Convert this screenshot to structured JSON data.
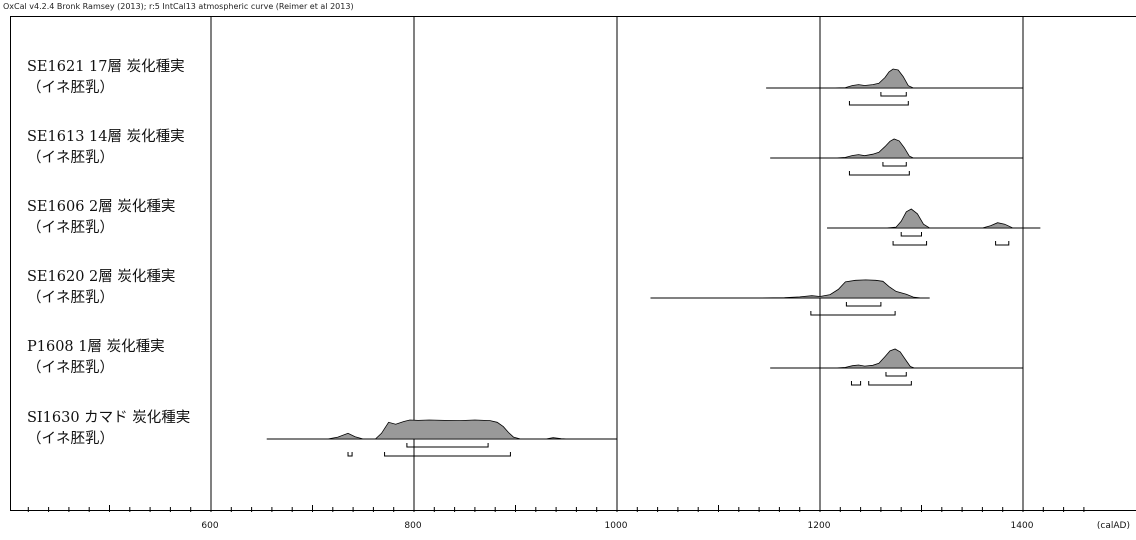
{
  "header": "OxCal v4.2.4 Bronk Ramsey (2013); r:5 IntCal13 atmospheric curve (Reimer et al 2013)",
  "chart_data": {
    "type": "area",
    "title": "",
    "xlabel": "(calAD)",
    "ylabel": "",
    "xlim": [
      400,
      1460
    ],
    "x_ticks": [
      600,
      800,
      1000,
      1200,
      1400
    ],
    "x_tick_labels": [
      "600",
      "800",
      "1000",
      "1200",
      "1400"
    ],
    "minor_tick_step": 20,
    "grid": "vertical lines at major ticks",
    "fill_color": "#999999",
    "samples": [
      {
        "name": "SE1621 17層 炭化種実",
        "sub": "（イネ胚乳）",
        "range": [
          1147,
          1400
        ],
        "density": [
          [
            1147,
            0
          ],
          [
            1210,
            0
          ],
          [
            1225,
            0.02
          ],
          [
            1232,
            0.13
          ],
          [
            1238,
            0.18
          ],
          [
            1244,
            0.13
          ],
          [
            1252,
            0.18
          ],
          [
            1258,
            0.25
          ],
          [
            1264,
            0.55
          ],
          [
            1268,
            0.85
          ],
          [
            1272,
            1
          ],
          [
            1277,
            0.95
          ],
          [
            1282,
            0.6
          ],
          [
            1287,
            0.12
          ],
          [
            1292,
            0
          ],
          [
            1400,
            0
          ]
        ],
        "hpd68": [
          [
            1260,
            1285
          ]
        ],
        "hpd95": [
          [
            1229,
            1287
          ]
        ]
      },
      {
        "name": "SE1613 14層 炭化種実",
        "sub": "（イネ胚乳）",
        "range": [
          1151,
          1400
        ],
        "density": [
          [
            1151,
            0
          ],
          [
            1215,
            0
          ],
          [
            1225,
            0.03
          ],
          [
            1232,
            0.13
          ],
          [
            1238,
            0.18
          ],
          [
            1244,
            0.12
          ],
          [
            1252,
            0.2
          ],
          [
            1258,
            0.3
          ],
          [
            1264,
            0.6
          ],
          [
            1269,
            0.88
          ],
          [
            1273,
            1
          ],
          [
            1278,
            0.9
          ],
          [
            1283,
            0.55
          ],
          [
            1288,
            0.1
          ],
          [
            1292,
            0
          ],
          [
            1400,
            0
          ]
        ],
        "hpd68": [
          [
            1262,
            1285
          ]
        ],
        "hpd95": [
          [
            1229,
            1288
          ]
        ]
      },
      {
        "name": "SE1606  2層 炭化種実",
        "sub": "（イネ胚乳）",
        "range": [
          1207,
          1417
        ],
        "density": [
          [
            1207,
            0
          ],
          [
            1265,
            0
          ],
          [
            1275,
            0.05
          ],
          [
            1280,
            0.35
          ],
          [
            1285,
            0.85
          ],
          [
            1290,
            1
          ],
          [
            1296,
            0.75
          ],
          [
            1302,
            0.2
          ],
          [
            1308,
            0
          ],
          [
            1360,
            0
          ],
          [
            1368,
            0.12
          ],
          [
            1375,
            0.28
          ],
          [
            1382,
            0.2
          ],
          [
            1390,
            0
          ],
          [
            1417,
            0
          ]
        ],
        "hpd68": [
          [
            1280,
            1300
          ]
        ],
        "hpd95": [
          [
            1272,
            1305
          ],
          [
            1373,
            1386
          ]
        ]
      },
      {
        "name": "SE1620  2層 炭化種実",
        "sub": "（イネ胚乳）",
        "range": [
          1033,
          1308
        ],
        "density": [
          [
            1033,
            0
          ],
          [
            1140,
            0
          ],
          [
            1165,
            0.02
          ],
          [
            1180,
            0.06
          ],
          [
            1192,
            0.12
          ],
          [
            1200,
            0.08
          ],
          [
            1210,
            0.18
          ],
          [
            1218,
            0.45
          ],
          [
            1225,
            0.85
          ],
          [
            1235,
            0.93
          ],
          [
            1245,
            0.95
          ],
          [
            1255,
            0.93
          ],
          [
            1262,
            0.88
          ],
          [
            1268,
            0.6
          ],
          [
            1275,
            0.35
          ],
          [
            1285,
            0.2
          ],
          [
            1292,
            0.05
          ],
          [
            1300,
            0
          ],
          [
            1308,
            0
          ]
        ],
        "hpd68": [
          [
            1226,
            1260
          ]
        ],
        "hpd95": [
          [
            1191,
            1274
          ]
        ]
      },
      {
        "name": "P1608  1層 炭化種実",
        "sub": "（イネ胚乳）",
        "range": [
          1151,
          1400
        ],
        "density": [
          [
            1151,
            0
          ],
          [
            1215,
            0
          ],
          [
            1225,
            0.03
          ],
          [
            1232,
            0.12
          ],
          [
            1238,
            0.16
          ],
          [
            1244,
            0.1
          ],
          [
            1252,
            0.14
          ],
          [
            1258,
            0.25
          ],
          [
            1264,
            0.6
          ],
          [
            1269,
            0.9
          ],
          [
            1274,
            1
          ],
          [
            1279,
            0.85
          ],
          [
            1284,
            0.45
          ],
          [
            1289,
            0.08
          ],
          [
            1293,
            0
          ],
          [
            1400,
            0
          ]
        ],
        "hpd68": [
          [
            1265,
            1285
          ]
        ],
        "hpd95": [
          [
            1231,
            1240
          ],
          [
            1248,
            1290
          ]
        ]
      },
      {
        "name": "SI1630 カマド 炭化種実",
        "sub": "（イネ胚乳）",
        "range": [
          655,
          1000
        ],
        "density": [
          [
            655,
            0
          ],
          [
            715,
            0
          ],
          [
            725,
            0.1
          ],
          [
            735,
            0.3
          ],
          [
            742,
            0.12
          ],
          [
            750,
            0
          ],
          [
            762,
            0
          ],
          [
            768,
            0.3
          ],
          [
            775,
            0.88
          ],
          [
            782,
            0.78
          ],
          [
            790,
            0.92
          ],
          [
            796,
            1
          ],
          [
            804,
            0.98
          ],
          [
            815,
            1
          ],
          [
            830,
            0.98
          ],
          [
            845,
            0.97
          ],
          [
            860,
            1
          ],
          [
            875,
            0.97
          ],
          [
            882,
            0.88
          ],
          [
            888,
            0.65
          ],
          [
            893,
            0.35
          ],
          [
            898,
            0.1
          ],
          [
            905,
            0
          ],
          [
            930,
            0
          ],
          [
            937,
            0.07
          ],
          [
            945,
            0.02
          ],
          [
            952,
            0
          ],
          [
            1000,
            0
          ]
        ],
        "hpd68": [
          [
            793,
            873
          ]
        ],
        "hpd95": [
          [
            735,
            739
          ],
          [
            771,
            895
          ]
        ]
      }
    ]
  }
}
